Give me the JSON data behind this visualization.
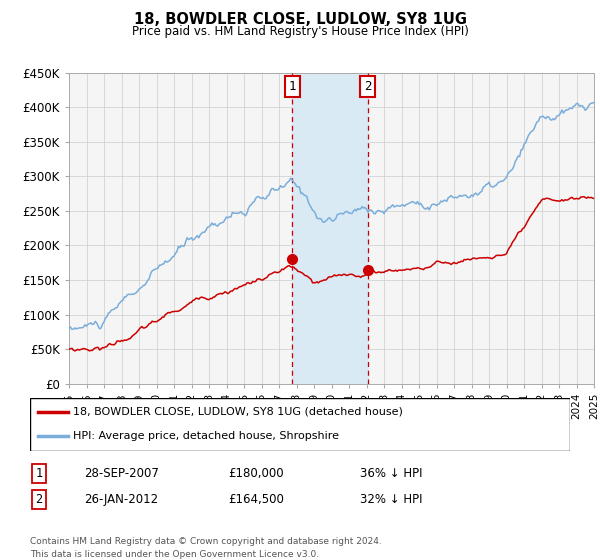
{
  "title": "18, BOWDLER CLOSE, LUDLOW, SY8 1UG",
  "subtitle": "Price paid vs. HM Land Registry's House Price Index (HPI)",
  "footnote": "Contains HM Land Registry data © Crown copyright and database right 2024.\nThis data is licensed under the Open Government Licence v3.0.",
  "legend_line1": "18, BOWDLER CLOSE, LUDLOW, SY8 1UG (detached house)",
  "legend_line2": "HPI: Average price, detached house, Shropshire",
  "transaction1": {
    "label": "1",
    "date": "28-SEP-2007",
    "price": "£180,000",
    "hpi": "36% ↓ HPI"
  },
  "transaction2": {
    "label": "2",
    "date": "26-JAN-2012",
    "price": "£164,500",
    "hpi": "32% ↓ HPI"
  },
  "sale1_year": 2007.75,
  "sale2_year": 2012.07,
  "sale1_price": 180000,
  "sale2_price": 164500,
  "hpi_color": "#7aadda",
  "price_color": "#cc0000",
  "shade_color": "#daeaf5",
  "vline_color": "#cc0000",
  "marker_box_color": "#cc0000",
  "ylim": [
    0,
    450000
  ],
  "yticks": [
    0,
    50000,
    100000,
    150000,
    200000,
    250000,
    300000,
    350000,
    400000,
    450000
  ],
  "year_start": 1995,
  "year_end": 2025,
  "bg_color": "#f5f5f5"
}
